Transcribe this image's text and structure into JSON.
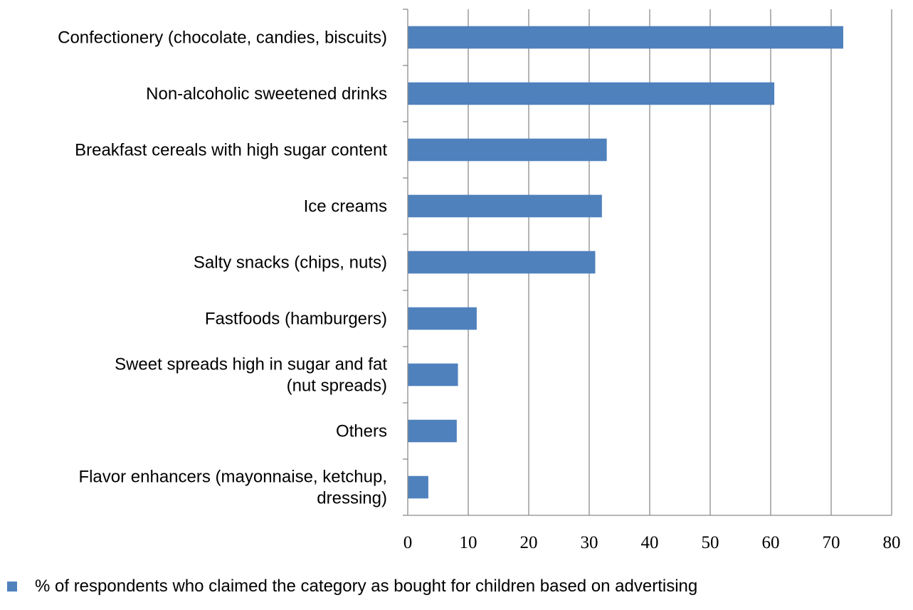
{
  "chart_data": {
    "type": "bar",
    "orientation": "horizontal",
    "categories": [
      [
        "Confectionery (chocolate, candies, biscuits)"
      ],
      [
        "Non-alcoholic sweetened drinks"
      ],
      [
        "Breakfast cereals with high sugar content"
      ],
      [
        "Ice creams"
      ],
      [
        "Salty snacks (chips, nuts)"
      ],
      [
        "Fastfoods (hamburgers)"
      ],
      [
        "Sweet spreads high in sugar and fat",
        "(nut spreads)"
      ],
      [
        "Others"
      ],
      [
        "Flavor enhancers (mayonnaise, ketchup,",
        "dressing)"
      ]
    ],
    "series": [
      {
        "name": "% of respondents who claimed the category as bought for children based on advertising",
        "values": [
          72,
          60.6,
          32.9,
          32.1,
          31,
          11.4,
          8.3,
          8.1,
          3.4
        ],
        "color": "#4f81bd"
      }
    ],
    "xticks": [
      0,
      10,
      20,
      30,
      40,
      50,
      60,
      70,
      80
    ],
    "xlim": [
      0,
      80
    ],
    "grid": "vertical",
    "legend_position": "bottom-left",
    "title": "",
    "xlabel": "",
    "ylabel": ""
  }
}
